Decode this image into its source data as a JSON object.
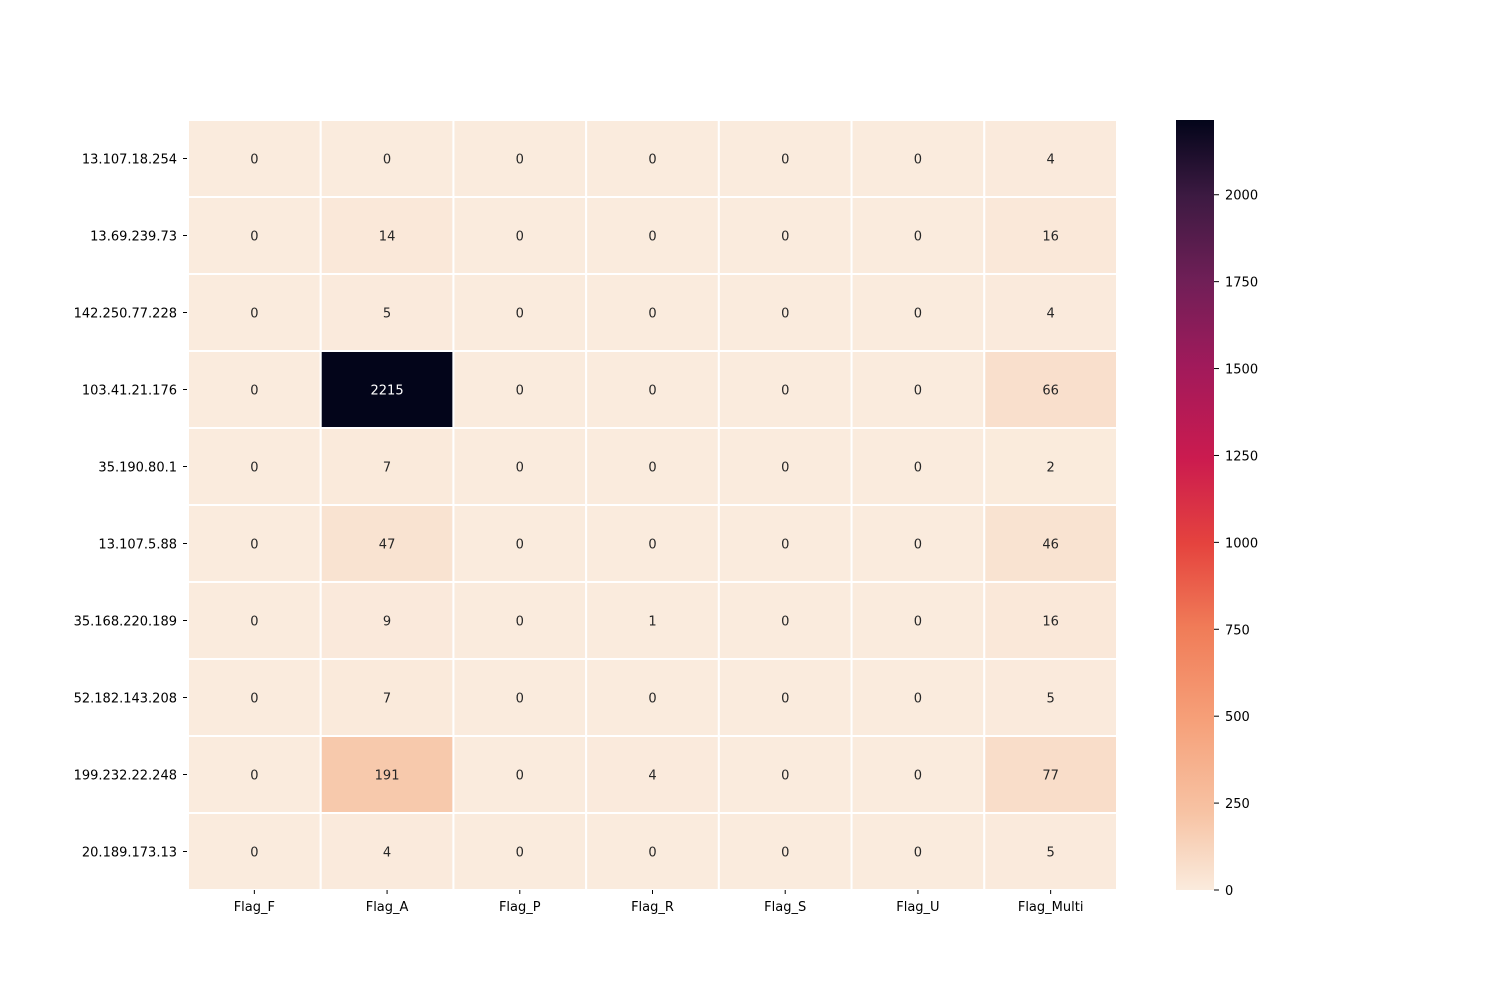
{
  "chart_data": {
    "type": "heatmap",
    "title": "",
    "xlabel": "",
    "ylabel": "",
    "columns": [
      "Flag_F",
      "Flag_A",
      "Flag_P",
      "Flag_R",
      "Flag_S",
      "Flag_U",
      "Flag_Multi"
    ],
    "rows": [
      "13.107.18.254",
      "13.69.239.73",
      "142.250.77.228",
      "103.41.21.176",
      "35.190.80.1",
      "13.107.5.88",
      "35.168.220.189",
      "52.182.143.208",
      "199.232.22.248",
      "20.189.173.13"
    ],
    "values": [
      [
        0,
        0,
        0,
        0,
        0,
        0,
        4
      ],
      [
        0,
        14,
        0,
        0,
        0,
        0,
        16
      ],
      [
        0,
        5,
        0,
        0,
        0,
        0,
        4
      ],
      [
        0,
        2215,
        0,
        0,
        0,
        0,
        66
      ],
      [
        0,
        7,
        0,
        0,
        0,
        0,
        2
      ],
      [
        0,
        47,
        0,
        0,
        0,
        0,
        46
      ],
      [
        0,
        9,
        0,
        1,
        0,
        0,
        16
      ],
      [
        0,
        7,
        0,
        0,
        0,
        0,
        5
      ],
      [
        0,
        191,
        0,
        4,
        0,
        0,
        77
      ],
      [
        0,
        4,
        0,
        0,
        0,
        0,
        5
      ]
    ],
    "colorbar": {
      "min": 0,
      "max": 2215,
      "ticks": [
        0,
        250,
        500,
        750,
        1000,
        1250,
        1500,
        1750,
        2000
      ],
      "colormap": "rocket_r"
    },
    "annotations": true,
    "grid": false,
    "legend": "colorbar-right"
  }
}
